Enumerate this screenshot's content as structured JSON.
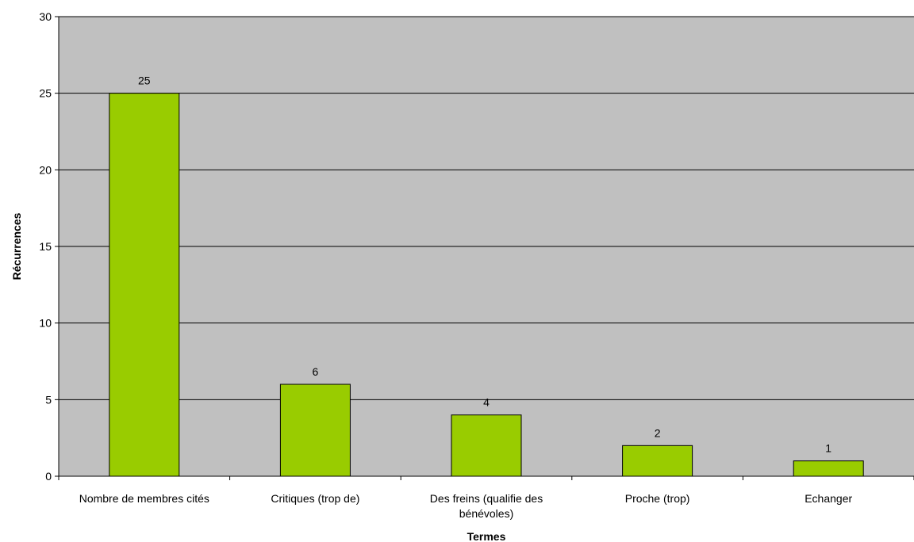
{
  "chart_data": {
    "type": "bar",
    "title": "",
    "xlabel": "Termes",
    "ylabel": "Récurrences",
    "categories": [
      [
        "Nombre de membres cités"
      ],
      [
        "Critiques (trop de)"
      ],
      [
        "Des freins (qualifie des",
        "bénévoles)"
      ],
      [
        "Proche (trop)"
      ],
      [
        "Echanger"
      ]
    ],
    "values": [
      25,
      6,
      4,
      2,
      1
    ],
    "ylim": [
      0,
      30
    ],
    "yticks": [
      0,
      5,
      10,
      15,
      20,
      25,
      30
    ],
    "grid": true,
    "legend": "none",
    "colors": {
      "bar": "#99cc00",
      "bar_border": "#000000",
      "plot_background": "#c0c0c0",
      "gridline": "#000000"
    }
  }
}
